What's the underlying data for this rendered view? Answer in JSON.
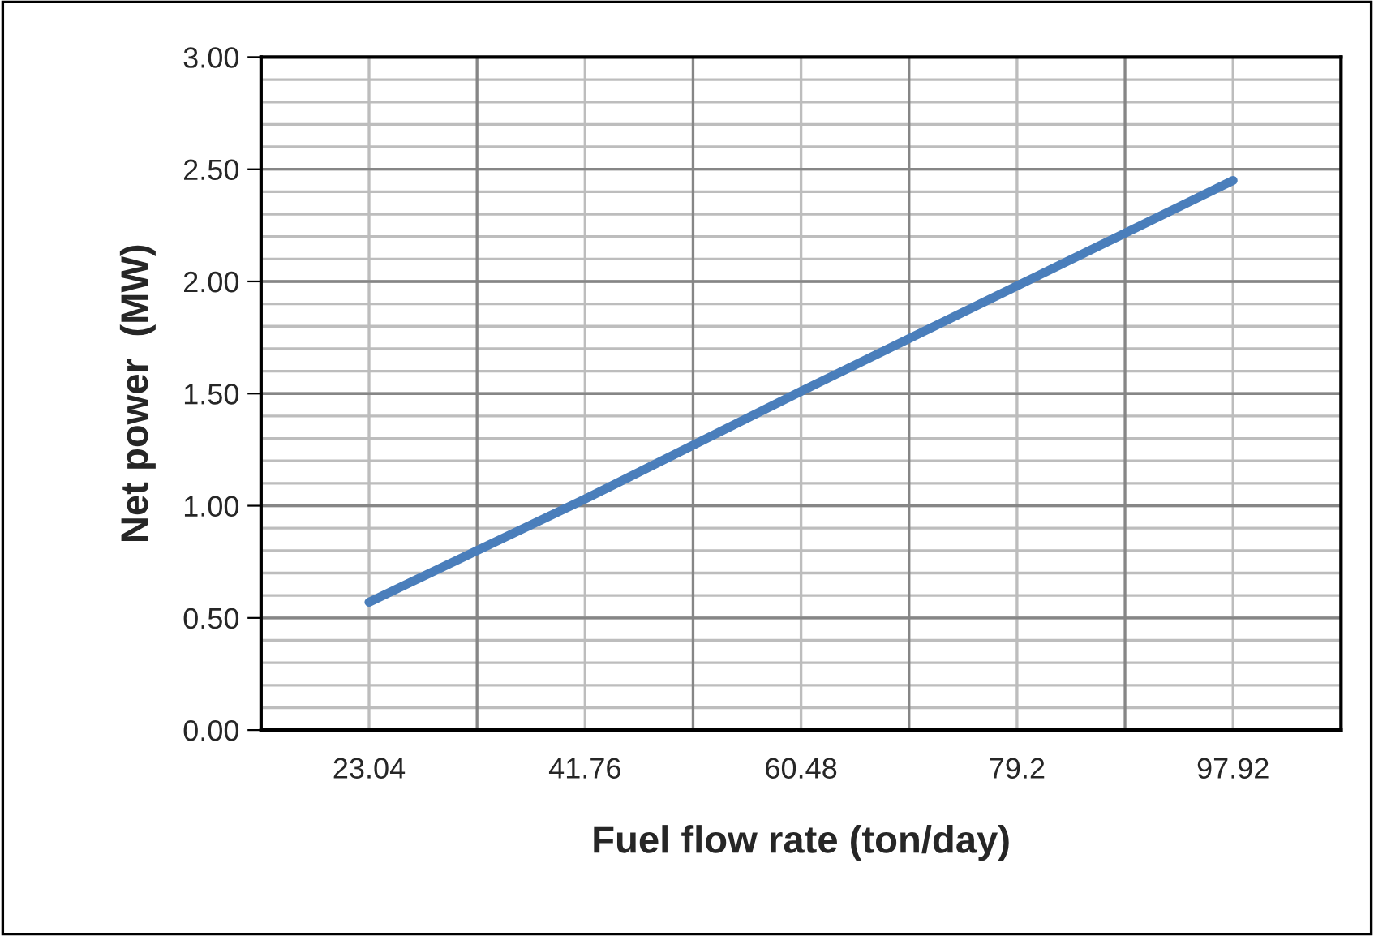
{
  "chart_data": {
    "type": "line",
    "xlabel": "Fuel flow rate (ton/day)",
    "ylabel": "Net power  (MW)",
    "categories": [
      "23.04",
      "41.76",
      "60.48",
      "79.2",
      "97.92"
    ],
    "series": [
      {
        "color": "#4a7ebb",
        "values": [
          0.57,
          1.03,
          1.51,
          1.98,
          2.45
        ]
      }
    ],
    "ylim": [
      0,
      3
    ],
    "yticks": [
      {
        "value": 0,
        "label": "0.00"
      },
      {
        "value": 0.5,
        "label": "0.50"
      },
      {
        "value": 1,
        "label": "1.00"
      },
      {
        "value": 1.5,
        "label": "1.50"
      },
      {
        "value": 2,
        "label": "2.00"
      },
      {
        "value": 2.5,
        "label": "2.50"
      },
      {
        "value": 3,
        "label": "3.00"
      }
    ],
    "grid": true,
    "marker": "none",
    "line_style": "solid"
  }
}
